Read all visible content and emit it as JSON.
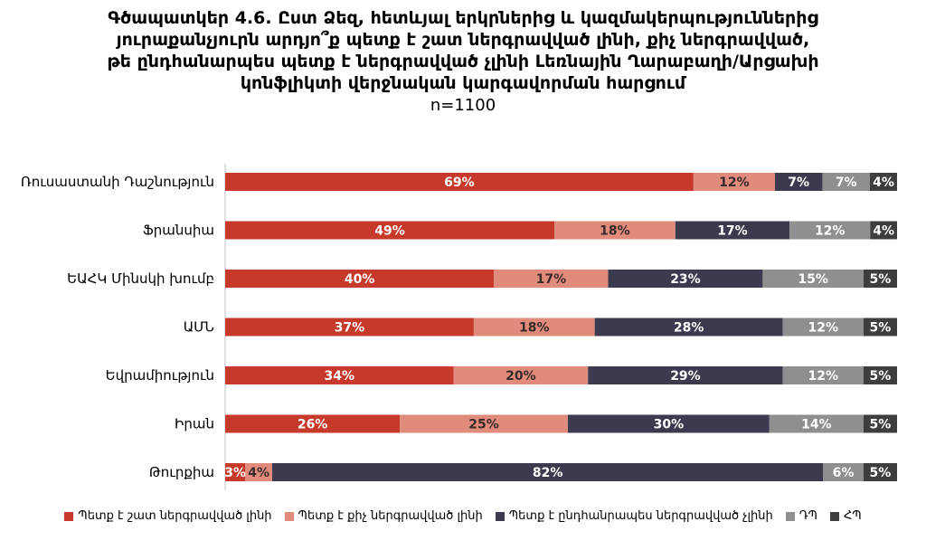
{
  "title": {
    "line1": "Գծապատկեր 4.6. Ըստ Ձեզ, հետևյալ երկրներից և կազմակերպություններից",
    "line2": "յուրաքանչյուրն արդյո՞ք պետք է շատ ներգրավված լինի, քիչ ներգրավված,",
    "line3": "թե ընդհանարպես պետք է ներգրավված չլինի Լեռնային Ղարաբաղի/Արցախի",
    "line4": "կոնֆլիկտի վերջնական կարգավորման հարցում",
    "subtitle": "n=1100"
  },
  "colors": {
    "very_involved": "#c63a2b",
    "little_involved": "#e08b7b",
    "not_involved": "#3c3a4e",
    "dk": "#8f8f8f",
    "refused": "#3e3e3e"
  },
  "chart_data": {
    "type": "bar",
    "orientation": "horizontal",
    "stacked": true,
    "categories": [
      "Ռուսաստանի Դաշնություն",
      "Ֆրանսիա",
      "ԵԱՀԿ Մինսկի խումբ",
      "ԱՄՆ",
      "Եվրամիություն",
      "Իրան",
      "Թուրքիա"
    ],
    "series": [
      {
        "name": "Պետք է շատ ներգրավված լինի",
        "values": [
          69,
          49,
          40,
          37,
          34,
          26,
          3
        ]
      },
      {
        "name": "Պետք է քիչ ներգրավված լինի",
        "values": [
          12,
          18,
          17,
          18,
          20,
          25,
          4
        ]
      },
      {
        "name": "Պետք է ընդհանրապես ներգրավված չլինի",
        "values": [
          7,
          17,
          23,
          28,
          29,
          30,
          82
        ]
      },
      {
        "name": "ԴՊ",
        "values": [
          7,
          12,
          15,
          12,
          12,
          14,
          6
        ]
      },
      {
        "name": "ՀՊ",
        "values": [
          4,
          4,
          5,
          5,
          5,
          5,
          5
        ]
      }
    ],
    "value_suffix": "%",
    "grid": false,
    "legend_position": "bottom"
  }
}
